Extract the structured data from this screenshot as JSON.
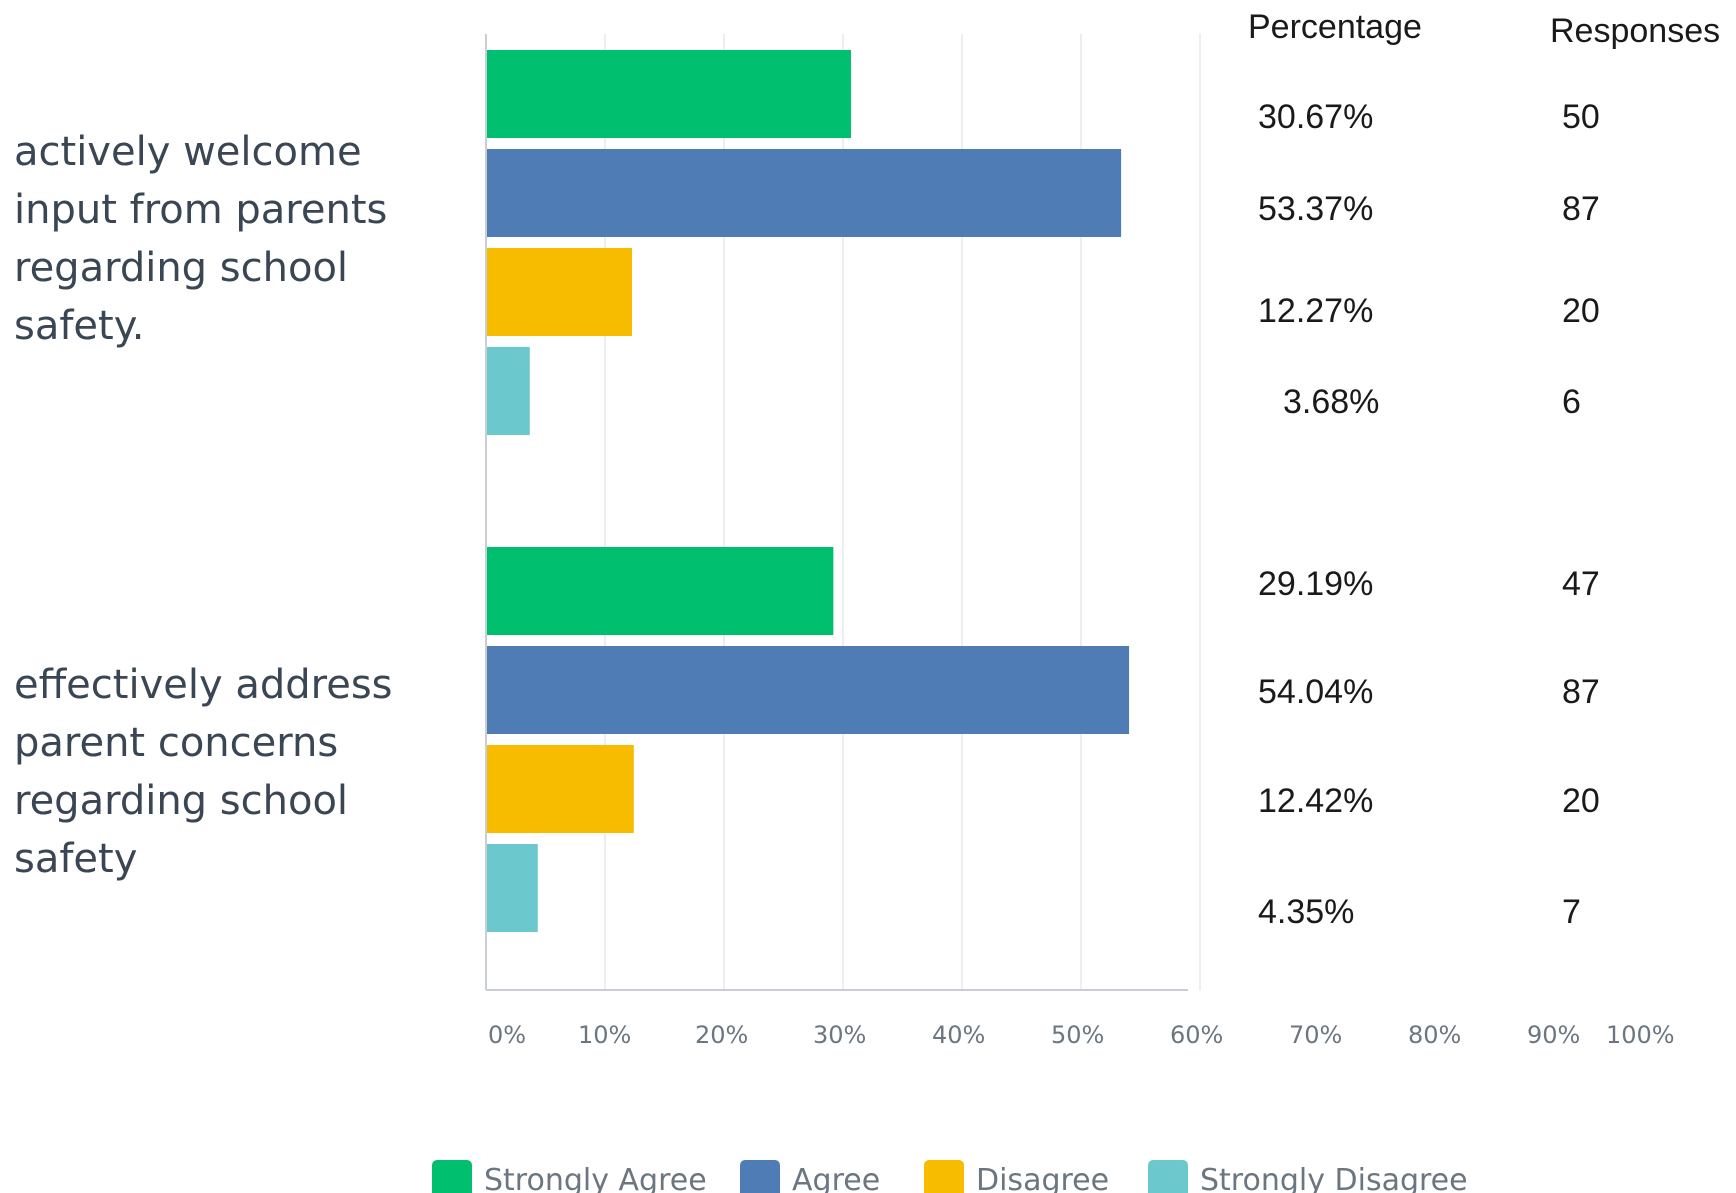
{
  "chart_data": {
    "type": "bar",
    "orientation": "horizontal",
    "categories": [
      "actively welcome input from parents regarding school safety.",
      "effectively address parent concerns regarding school safety"
    ],
    "category_lines": [
      [
        "actively welcome",
        "input from parents",
        "regarding school",
        "safety."
      ],
      [
        "effectively address",
        "parent concerns",
        "regarding school",
        "safety"
      ]
    ],
    "series": [
      {
        "name": "Strongly Agree",
        "color": "#00bf6f",
        "values": [
          30.67,
          29.19
        ],
        "value_labels": [
          "30.67%",
          "29.19%"
        ],
        "responses": [
          "50",
          "47"
        ]
      },
      {
        "name": "Agree",
        "color": "#507cb6",
        "values": [
          53.37,
          54.04
        ],
        "value_labels": [
          "53.37%",
          "54.04%"
        ],
        "responses": [
          "87",
          "87"
        ]
      },
      {
        "name": "Disagree",
        "color": "#f7bc00",
        "values": [
          12.27,
          12.42
        ],
        "value_labels": [
          "12.27%",
          "12.42%"
        ],
        "responses": [
          "20",
          "20"
        ]
      },
      {
        "name": "Strongly Disagree",
        "color": "#6bc8cd",
        "values": [
          3.68,
          4.35
        ],
        "value_labels": [
          "3.68%",
          "4.35%"
        ],
        "responses": [
          "6",
          "7"
        ]
      }
    ],
    "x_ticks": [
      "0%",
      "10%",
      "20%",
      "30%",
      "40%",
      "50%",
      "60%",
      "70%",
      "80%",
      "90%",
      "100%"
    ],
    "xlim": [
      0,
      60
    ],
    "grid": true,
    "legend_position": "bottom",
    "table_headers": {
      "percentage": "Percentage",
      "responses": "Responses"
    }
  }
}
